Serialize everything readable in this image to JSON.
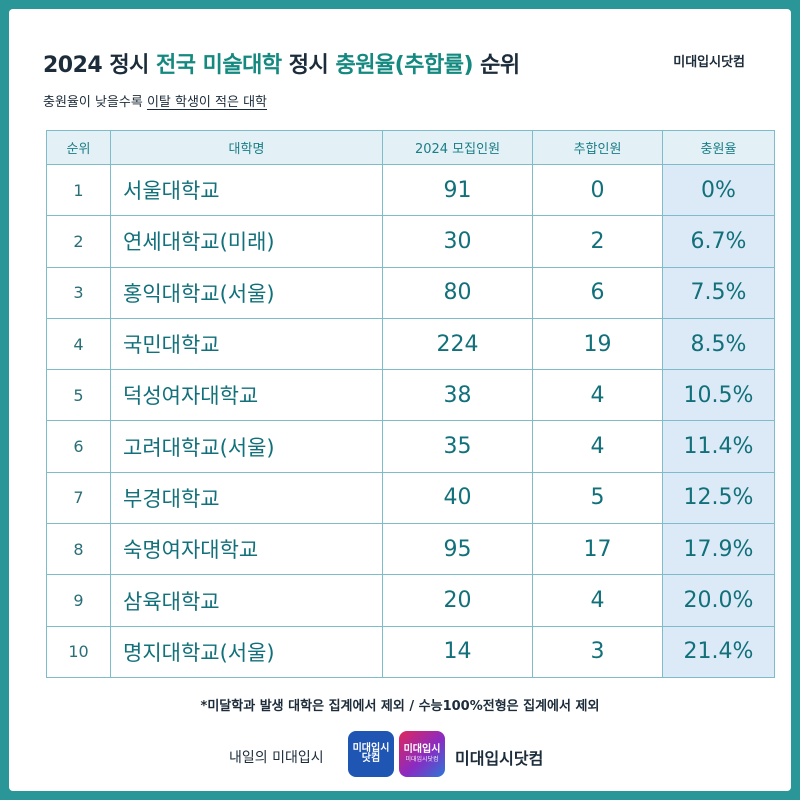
{
  "header": {
    "title_part1": "2024 정시 ",
    "title_hl1": "전국 미술대학",
    "title_part2": " 정시 ",
    "title_hl2": "충원율(추합률)",
    "title_part3": " 순위",
    "brand": "미대입시닷컴",
    "subtitle_part1": "충원율이 낮을수록 ",
    "subtitle_underline": "이탈 학생이 적은 대학"
  },
  "table": {
    "headers": [
      "순위",
      "대학명",
      "2024 모집인원",
      "추합인원",
      "충원율"
    ],
    "rows": [
      {
        "rank": "1",
        "name": "서울대학교",
        "quota": "91",
        "added": "0",
        "rate": "0%"
      },
      {
        "rank": "2",
        "name": "연세대학교(미래)",
        "quota": "30",
        "added": "2",
        "rate": "6.7%"
      },
      {
        "rank": "3",
        "name": "홍익대학교(서울)",
        "quota": "80",
        "added": "6",
        "rate": "7.5%"
      },
      {
        "rank": "4",
        "name": "국민대학교",
        "quota": "224",
        "added": "19",
        "rate": "8.5%"
      },
      {
        "rank": "5",
        "name": "덕성여자대학교",
        "quota": "38",
        "added": "4",
        "rate": "10.5%"
      },
      {
        "rank": "6",
        "name": "고려대학교(서울)",
        "quota": "35",
        "added": "4",
        "rate": "11.4%"
      },
      {
        "rank": "7",
        "name": "부경대학교",
        "quota": "40",
        "added": "5",
        "rate": "12.5%"
      },
      {
        "rank": "8",
        "name": "숙명여자대학교",
        "quota": "95",
        "added": "17",
        "rate": "17.9%"
      },
      {
        "rank": "9",
        "name": "삼육대학교",
        "quota": "20",
        "added": "4",
        "rate": "20.0%"
      },
      {
        "rank": "10",
        "name": "명지대학교(서울)",
        "quota": "14",
        "added": "3",
        "rate": "21.4%"
      }
    ]
  },
  "footer": {
    "note": "*미달학과 발생 대학은 집계에서 제외 / 수능100%전형은 집계에서 제외",
    "tagline": "내일의 미대입시",
    "logo1_text_line1": "미대입시",
    "logo1_text_line2": "닷컴",
    "logo2_text": "미대입시",
    "logo2_small": "미대입시닷컴",
    "brand": "미대입시닷컴"
  },
  "colors": {
    "frame": "#2a9698",
    "accent": "#14897f",
    "table_header_bg": "#e3f1f6",
    "rate_col_bg": "#dbeaf6"
  }
}
